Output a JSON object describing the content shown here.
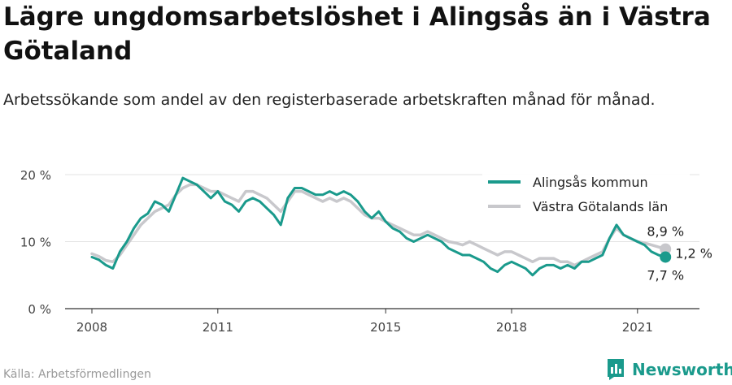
{
  "title": "Lägre ungdomsarbetslöshet i Alingsås än i Västra Götaland",
  "subtitle": "Arbetssökande som andel av den registerbaserade arbetskraften månad för månad.",
  "source": "Källa: Arbetsförmedlingen",
  "brand": "Newsworthy",
  "colors": {
    "alingsas": "#1a9a8c",
    "vg": "#c8c8cc",
    "grid": "#e3e3e3",
    "axis": "#333333",
    "brand": "#1a9a8c"
  },
  "chart_data": {
    "type": "line",
    "x_ticks": [
      "2008",
      "2011",
      "2015",
      "2018",
      "2021"
    ],
    "y_ticks": [
      "0 %",
      "10 %",
      "20 %"
    ],
    "ylim": [
      0,
      20
    ],
    "grid": true,
    "legend_position": "top-right",
    "end_labels": {
      "vg": "8,9 %",
      "diff": "1,2 %",
      "alingsas": "7,7 %"
    },
    "series": [
      {
        "name": "Alingsås kommun",
        "color": "#1a9a8c",
        "values": [
          [
            "2008-01",
            7.7
          ],
          [
            "2008-03",
            7.3
          ],
          [
            "2008-05",
            6.5
          ],
          [
            "2008-07",
            6.0
          ],
          [
            "2008-09",
            8.5
          ],
          [
            "2008-11",
            10.0
          ],
          [
            "2009-01",
            12.0
          ],
          [
            "2009-03",
            13.5
          ],
          [
            "2009-05",
            14.2
          ],
          [
            "2009-07",
            16.0
          ],
          [
            "2009-09",
            15.5
          ],
          [
            "2009-11",
            14.5
          ],
          [
            "2010-01",
            17.0
          ],
          [
            "2010-03",
            19.5
          ],
          [
            "2010-05",
            19.0
          ],
          [
            "2010-07",
            18.5
          ],
          [
            "2010-09",
            17.5
          ],
          [
            "2010-11",
            16.5
          ],
          [
            "2011-01",
            17.5
          ],
          [
            "2011-03",
            16.0
          ],
          [
            "2011-05",
            15.5
          ],
          [
            "2011-07",
            14.5
          ],
          [
            "2011-09",
            16.0
          ],
          [
            "2011-11",
            16.5
          ],
          [
            "2012-01",
            16.0
          ],
          [
            "2012-03",
            15.0
          ],
          [
            "2012-05",
            14.0
          ],
          [
            "2012-07",
            12.5
          ],
          [
            "2012-09",
            16.5
          ],
          [
            "2012-11",
            18.0
          ],
          [
            "2013-01",
            18.0
          ],
          [
            "2013-03",
            17.5
          ],
          [
            "2013-05",
            17.0
          ],
          [
            "2013-07",
            17.0
          ],
          [
            "2013-09",
            17.5
          ],
          [
            "2013-11",
            17.0
          ],
          [
            "2014-01",
            17.5
          ],
          [
            "2014-03",
            17.0
          ],
          [
            "2014-05",
            16.0
          ],
          [
            "2014-07",
            14.5
          ],
          [
            "2014-09",
            13.5
          ],
          [
            "2014-11",
            14.5
          ],
          [
            "2015-01",
            13.0
          ],
          [
            "2015-03",
            12.0
          ],
          [
            "2015-05",
            11.5
          ],
          [
            "2015-07",
            10.5
          ],
          [
            "2015-09",
            10.0
          ],
          [
            "2015-11",
            10.5
          ],
          [
            "2016-01",
            11.0
          ],
          [
            "2016-03",
            10.5
          ],
          [
            "2016-05",
            10.0
          ],
          [
            "2016-07",
            9.0
          ],
          [
            "2016-09",
            8.5
          ],
          [
            "2016-11",
            8.0
          ],
          [
            "2017-01",
            8.0
          ],
          [
            "2017-03",
            7.5
          ],
          [
            "2017-05",
            7.0
          ],
          [
            "2017-07",
            6.0
          ],
          [
            "2017-09",
            5.5
          ],
          [
            "2017-11",
            6.5
          ],
          [
            "2018-01",
            7.0
          ],
          [
            "2018-03",
            6.5
          ],
          [
            "2018-05",
            6.0
          ],
          [
            "2018-07",
            5.0
          ],
          [
            "2018-09",
            6.0
          ],
          [
            "2018-11",
            6.5
          ],
          [
            "2019-01",
            6.5
          ],
          [
            "2019-03",
            6.0
          ],
          [
            "2019-05",
            6.5
          ],
          [
            "2019-07",
            6.0
          ],
          [
            "2019-09",
            7.0
          ],
          [
            "2019-11",
            7.0
          ],
          [
            "2020-01",
            7.5
          ],
          [
            "2020-03",
            8.0
          ],
          [
            "2020-05",
            10.5
          ],
          [
            "2020-07",
            12.5
          ],
          [
            "2020-09",
            11.0
          ],
          [
            "2020-11",
            10.5
          ],
          [
            "2021-01",
            10.0
          ],
          [
            "2021-03",
            9.5
          ],
          [
            "2021-05",
            8.5
          ],
          [
            "2021-07",
            8.0
          ],
          [
            "2021-09",
            7.7
          ]
        ]
      },
      {
        "name": "Västra Götalands län",
        "color": "#c8c8cc",
        "values": [
          [
            "2008-01",
            8.2
          ],
          [
            "2008-03",
            7.8
          ],
          [
            "2008-05",
            7.2
          ],
          [
            "2008-07",
            7.0
          ],
          [
            "2008-09",
            8.0
          ],
          [
            "2008-11",
            9.5
          ],
          [
            "2009-01",
            11.0
          ],
          [
            "2009-03",
            12.5
          ],
          [
            "2009-05",
            13.5
          ],
          [
            "2009-07",
            14.5
          ],
          [
            "2009-09",
            15.0
          ],
          [
            "2009-11",
            15.5
          ],
          [
            "2010-01",
            17.0
          ],
          [
            "2010-03",
            18.0
          ],
          [
            "2010-05",
            18.5
          ],
          [
            "2010-07",
            18.5
          ],
          [
            "2010-09",
            18.0
          ],
          [
            "2010-11",
            17.5
          ],
          [
            "2011-01",
            17.5
          ],
          [
            "2011-03",
            17.0
          ],
          [
            "2011-05",
            16.5
          ],
          [
            "2011-07",
            16.0
          ],
          [
            "2011-09",
            17.5
          ],
          [
            "2011-11",
            17.5
          ],
          [
            "2012-01",
            17.0
          ],
          [
            "2012-03",
            16.5
          ],
          [
            "2012-05",
            15.5
          ],
          [
            "2012-07",
            14.5
          ],
          [
            "2012-09",
            16.0
          ],
          [
            "2012-11",
            17.5
          ],
          [
            "2013-01",
            17.5
          ],
          [
            "2013-03",
            17.0
          ],
          [
            "2013-05",
            16.5
          ],
          [
            "2013-07",
            16.0
          ],
          [
            "2013-09",
            16.5
          ],
          [
            "2013-11",
            16.0
          ],
          [
            "2014-01",
            16.5
          ],
          [
            "2014-03",
            16.0
          ],
          [
            "2014-05",
            15.0
          ],
          [
            "2014-07",
            14.0
          ],
          [
            "2014-09",
            13.5
          ],
          [
            "2014-11",
            13.5
          ],
          [
            "2015-01",
            13.0
          ],
          [
            "2015-03",
            12.5
          ],
          [
            "2015-05",
            12.0
          ],
          [
            "2015-07",
            11.5
          ],
          [
            "2015-09",
            11.0
          ],
          [
            "2015-11",
            11.0
          ],
          [
            "2016-01",
            11.5
          ],
          [
            "2016-03",
            11.0
          ],
          [
            "2016-05",
            10.5
          ],
          [
            "2016-07",
            10.0
          ],
          [
            "2016-09",
            9.8
          ],
          [
            "2016-11",
            9.5
          ],
          [
            "2017-01",
            10.0
          ],
          [
            "2017-03",
            9.5
          ],
          [
            "2017-05",
            9.0
          ],
          [
            "2017-07",
            8.5
          ],
          [
            "2017-09",
            8.0
          ],
          [
            "2017-11",
            8.5
          ],
          [
            "2018-01",
            8.5
          ],
          [
            "2018-03",
            8.0
          ],
          [
            "2018-05",
            7.5
          ],
          [
            "2018-07",
            7.0
          ],
          [
            "2018-09",
            7.5
          ],
          [
            "2018-11",
            7.5
          ],
          [
            "2019-01",
            7.5
          ],
          [
            "2019-03",
            7.0
          ],
          [
            "2019-05",
            7.0
          ],
          [
            "2019-07",
            6.5
          ],
          [
            "2019-09",
            7.0
          ],
          [
            "2019-11",
            7.5
          ],
          [
            "2020-01",
            8.0
          ],
          [
            "2020-03",
            8.5
          ],
          [
            "2020-05",
            10.5
          ],
          [
            "2020-07",
            12.0
          ],
          [
            "2020-09",
            11.0
          ],
          [
            "2020-11",
            10.5
          ],
          [
            "2021-01",
            10.0
          ],
          [
            "2021-03",
            9.8
          ],
          [
            "2021-05",
            9.5
          ],
          [
            "2021-07",
            9.2
          ],
          [
            "2021-09",
            8.9
          ]
        ]
      }
    ]
  }
}
